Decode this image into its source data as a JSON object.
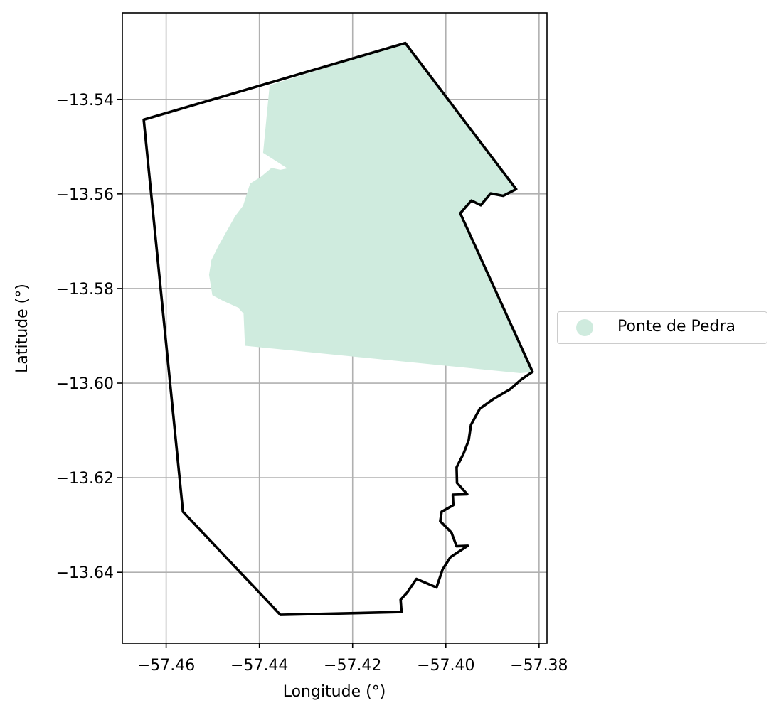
{
  "colors": {
    "area_fill": "#cfebde",
    "boundary": "#000000",
    "grid": "#b0b0b0"
  },
  "axes": {
    "xlabel": "Longitude (°)",
    "ylabel": "Latitude (°)",
    "xlim": [
      -57.4694,
      -57.3783
    ],
    "ylim": [
      -13.655,
      -13.5217
    ],
    "xticks": [
      -57.46,
      -57.44,
      -57.42,
      -57.4,
      -57.38
    ],
    "xtick_labels": [
      "−57.46",
      "−57.44",
      "−57.42",
      "−57.40",
      "−57.38"
    ],
    "yticks": [
      -13.54,
      -13.56,
      -13.58,
      -13.6,
      -13.62,
      -13.64
    ],
    "ytick_labels": [
      "−13.54",
      "−13.56",
      "−13.58",
      "−13.60",
      "−13.62",
      "−13.64"
    ],
    "grid": true
  },
  "legend": {
    "label": "Ponte de Pedra",
    "placement": "outside-right"
  },
  "chart_data": {
    "type": "map",
    "xlabel": "Longitude (°)",
    "ylabel": "Latitude (°)",
    "series": [
      {
        "name": "Ponte de Pedra",
        "kind": "filled-area",
        "coords": [
          [
            -57.4378,
            -13.537
          ],
          [
            -57.4087,
            -13.5281
          ],
          [
            -57.3849,
            -13.559
          ],
          [
            -57.3877,
            -13.5604
          ],
          [
            -57.3904,
            -13.5599
          ],
          [
            -57.3925,
            -13.5624
          ],
          [
            -57.3945,
            -13.5614
          ],
          [
            -57.3969,
            -13.5641
          ],
          [
            -57.3814,
            -13.5976
          ],
          [
            -57.384,
            -13.5979
          ],
          [
            -57.4431,
            -13.5921
          ],
          [
            -57.4434,
            -13.5853
          ],
          [
            -57.4446,
            -13.584
          ],
          [
            -57.4478,
            -13.5826
          ],
          [
            -57.4501,
            -13.5814
          ],
          [
            -57.4508,
            -13.5771
          ],
          [
            -57.4503,
            -13.574
          ],
          [
            -57.4488,
            -13.571
          ],
          [
            -57.4452,
            -13.5647
          ],
          [
            -57.4435,
            -13.5625
          ],
          [
            -57.442,
            -13.5578
          ],
          [
            -57.4397,
            -13.5564
          ],
          [
            -57.4374,
            -13.5545
          ],
          [
            -57.4355,
            -13.5549
          ],
          [
            -57.434,
            -13.5546
          ],
          [
            -57.4392,
            -13.5513
          ]
        ]
      },
      {
        "name": "boundary",
        "kind": "outline",
        "coords": [
          [
            -57.4648,
            -13.5443
          ],
          [
            -57.4087,
            -13.5281
          ],
          [
            -57.3849,
            -13.559
          ],
          [
            -57.3877,
            -13.5604
          ],
          [
            -57.3904,
            -13.5599
          ],
          [
            -57.3925,
            -13.5624
          ],
          [
            -57.3945,
            -13.5614
          ],
          [
            -57.3969,
            -13.5641
          ],
          [
            -57.3814,
            -13.5976
          ],
          [
            -57.3838,
            -13.5992
          ],
          [
            -57.3862,
            -13.6013
          ],
          [
            -57.3897,
            -13.6033
          ],
          [
            -57.3927,
            -13.6054
          ],
          [
            -57.3946,
            -13.6088
          ],
          [
            -57.3951,
            -13.6121
          ],
          [
            -57.3962,
            -13.6149
          ],
          [
            -57.3977,
            -13.6178
          ],
          [
            -57.3976,
            -13.6211
          ],
          [
            -57.3954,
            -13.6235
          ],
          [
            -57.3985,
            -13.6236
          ],
          [
            -57.3984,
            -13.6258
          ],
          [
            -57.4009,
            -13.6272
          ],
          [
            -57.4012,
            -13.6292
          ],
          [
            -57.3988,
            -13.6316
          ],
          [
            -57.3977,
            -13.6345
          ],
          [
            -57.3953,
            -13.6344
          ],
          [
            -57.399,
            -13.6368
          ],
          [
            -57.4007,
            -13.6394
          ],
          [
            -57.402,
            -13.6432
          ],
          [
            -57.4063,
            -13.6414
          ],
          [
            -57.4083,
            -13.6443
          ],
          [
            -57.4097,
            -13.6458
          ],
          [
            -57.4095,
            -13.6484
          ],
          [
            -57.4355,
            -13.649
          ],
          [
            -57.4564,
            -13.6272
          ]
        ]
      }
    ]
  }
}
